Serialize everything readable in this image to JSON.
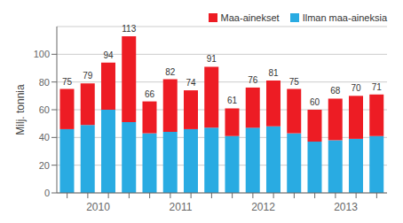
{
  "chart_data": {
    "type": "bar",
    "stacked": true,
    "categories": [
      null,
      "2010",
      null,
      null,
      null,
      "2011",
      null,
      null,
      null,
      "2012",
      null,
      null,
      null,
      "2013",
      null,
      null
    ],
    "series": [
      {
        "name": "Ilman maa-aineksia",
        "color": "#29ABE2",
        "values": [
          46,
          49,
          60,
          51,
          43,
          44,
          46,
          47,
          41,
          47,
          48,
          43,
          37,
          38,
          39,
          41
        ]
      },
      {
        "name": "Maa-ainekset",
        "color": "#ED1C24",
        "values": [
          29,
          30,
          34,
          62,
          23,
          38,
          28,
          44,
          20,
          29,
          33,
          32,
          23,
          30,
          31,
          30
        ]
      }
    ],
    "totals": [
      75,
      79,
      94,
      113,
      66,
      82,
      74,
      91,
      61,
      76,
      81,
      75,
      60,
      68,
      70,
      71
    ],
    "ylabel": "Milj. tonnia",
    "ylim": [
      0,
      120
    ],
    "yticks": [
      0,
      20,
      40,
      60,
      80,
      100
    ],
    "grid": true,
    "legend": "upper right"
  }
}
